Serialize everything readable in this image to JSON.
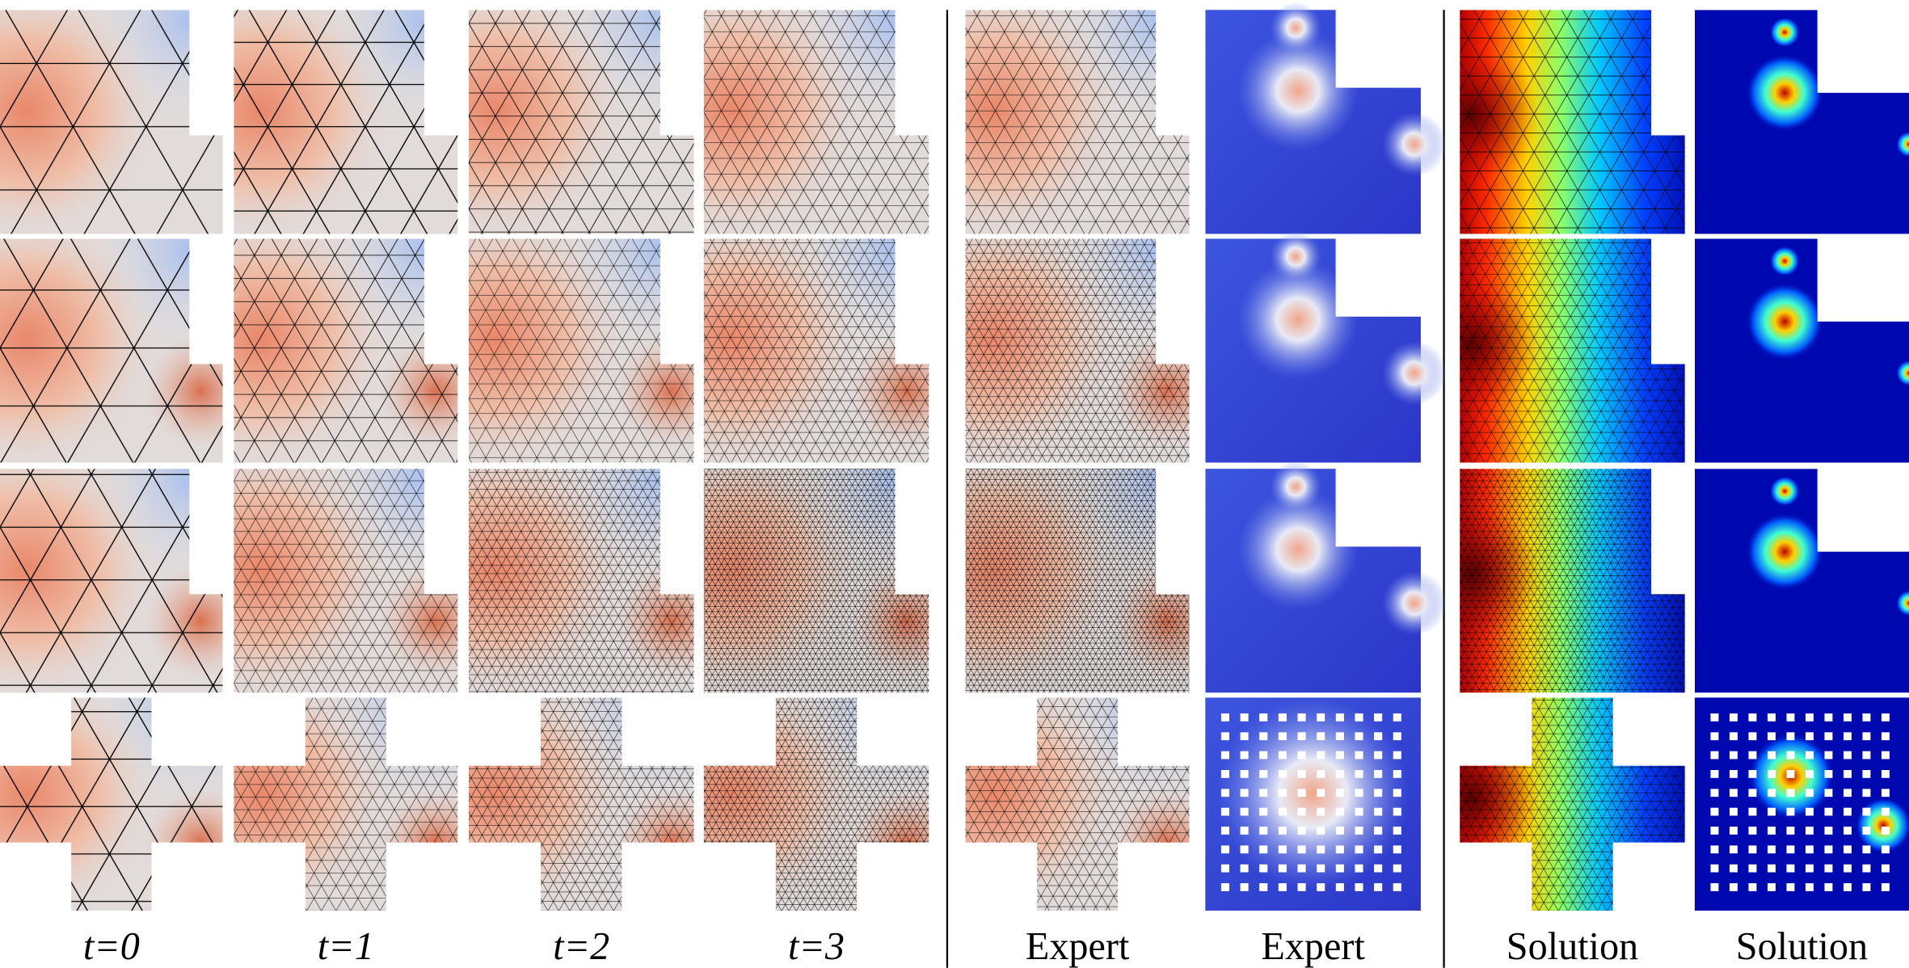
{
  "column_labels": [
    "t=0",
    "t=1",
    "t=2",
    "t=3",
    "Expert",
    "Expert",
    "Solution",
    "Solution"
  ]
}
